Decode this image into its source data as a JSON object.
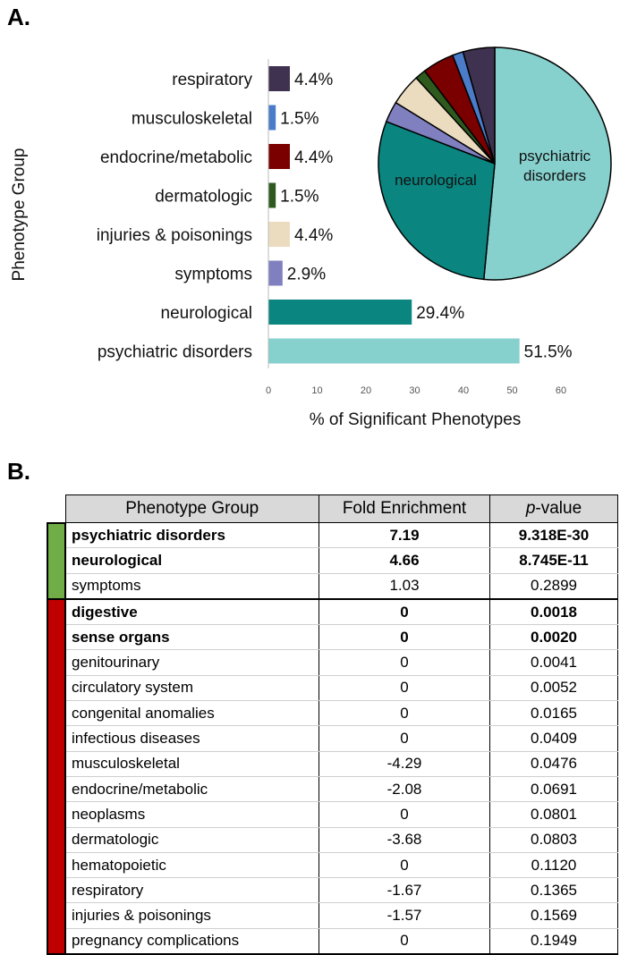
{
  "panel_a_label": "A.",
  "panel_b_label": "B.",
  "chart_data": [
    {
      "type": "bar",
      "orientation": "horizontal",
      "categories": [
        "respiratory",
        "musculoskeletal",
        "endocrine/metabolic",
        "dermatologic",
        "injuries & poisonings",
        "symptoms",
        "neurological",
        "psychiatric disorders"
      ],
      "values": [
        4.4,
        1.5,
        4.4,
        1.5,
        4.4,
        2.9,
        29.4,
        51.5
      ],
      "data_labels": [
        "4.4%",
        "1.5%",
        "4.4%",
        "1.5%",
        "4.4%",
        "2.9%",
        "29.4%",
        "51.5%"
      ],
      "colors": [
        "#3f3150",
        "#4a7cc9",
        "#7a0000",
        "#2e5a1e",
        "#ebdcc0",
        "#8080c0",
        "#0b8580",
        "#86d0cd"
      ],
      "xlabel": "% of Significant Phenotypes",
      "ylabel": "Phenotype Group",
      "xlim": [
        0,
        60
      ],
      "xticks": [
        "0",
        "10",
        "20",
        "30",
        "40",
        "50",
        "60"
      ]
    },
    {
      "type": "pie",
      "slices": [
        {
          "name": "psychiatric disorders",
          "value": 51.5,
          "color": "#86d0cd",
          "label": "psychiatric disorders"
        },
        {
          "name": "neurological",
          "value": 29.4,
          "color": "#0b8580",
          "label": "neurological"
        },
        {
          "name": "symptoms",
          "value": 2.9,
          "color": "#8080c0"
        },
        {
          "name": "injuries & poisonings",
          "value": 4.4,
          "color": "#ebdcc0"
        },
        {
          "name": "dermatologic",
          "value": 1.5,
          "color": "#2e5a1e"
        },
        {
          "name": "endocrine/metabolic",
          "value": 4.4,
          "color": "#7a0000"
        },
        {
          "name": "musculoskeletal",
          "value": 1.5,
          "color": "#4a7cc9"
        },
        {
          "name": "respiratory",
          "value": 4.4,
          "color": "#3f3150"
        }
      ]
    },
    {
      "type": "table",
      "headers": [
        "Phenotype Group",
        "Fold Enrichment",
        "-value"
      ],
      "header_p": "p",
      "group_colors": {
        "enriched": "#70ad47",
        "depleted": "#c00000"
      },
      "rows": [
        {
          "name": "psychiatric disorders",
          "fe": "7.19",
          "p": "9.318E-30",
          "bold": true,
          "group": "enriched"
        },
        {
          "name": "neurological",
          "fe": "4.66",
          "p": "8.745E-11",
          "bold": true,
          "group": "enriched"
        },
        {
          "name": "symptoms",
          "fe": "1.03",
          "p": "0.2899",
          "bold": false,
          "group": "enriched"
        },
        {
          "name": "digestive",
          "fe": "0",
          "p": "0.0018",
          "bold": true,
          "group": "depleted"
        },
        {
          "name": "sense organs",
          "fe": "0",
          "p": "0.0020",
          "bold": true,
          "group": "depleted"
        },
        {
          "name": "genitourinary",
          "fe": "0",
          "p": "0.0041",
          "bold": false,
          "group": "depleted"
        },
        {
          "name": "circulatory system",
          "fe": "0",
          "p": "0.0052",
          "bold": false,
          "group": "depleted"
        },
        {
          "name": "congenital anomalies",
          "fe": "0",
          "p": "0.0165",
          "bold": false,
          "group": "depleted"
        },
        {
          "name": "infectious diseases",
          "fe": "0",
          "p": "0.0409",
          "bold": false,
          "group": "depleted"
        },
        {
          "name": "musculoskeletal",
          "fe": "-4.29",
          "p": "0.0476",
          "bold": false,
          "group": "depleted"
        },
        {
          "name": "endocrine/metabolic",
          "fe": "-2.08",
          "p": "0.0691",
          "bold": false,
          "group": "depleted"
        },
        {
          "name": "neoplasms",
          "fe": "0",
          "p": "0.0801",
          "bold": false,
          "group": "depleted"
        },
        {
          "name": "dermatologic",
          "fe": "-3.68",
          "p": "0.0803",
          "bold": false,
          "group": "depleted"
        },
        {
          "name": "hematopoietic",
          "fe": "0",
          "p": "0.1120",
          "bold": false,
          "group": "depleted"
        },
        {
          "name": "respiratory",
          "fe": "-1.67",
          "p": "0.1365",
          "bold": false,
          "group": "depleted"
        },
        {
          "name": "injuries & poisonings",
          "fe": "-1.57",
          "p": "0.1569",
          "bold": false,
          "group": "depleted"
        },
        {
          "name": "pregnancy complications",
          "fe": "0",
          "p": "0.1949",
          "bold": false,
          "group": "depleted"
        }
      ]
    }
  ]
}
